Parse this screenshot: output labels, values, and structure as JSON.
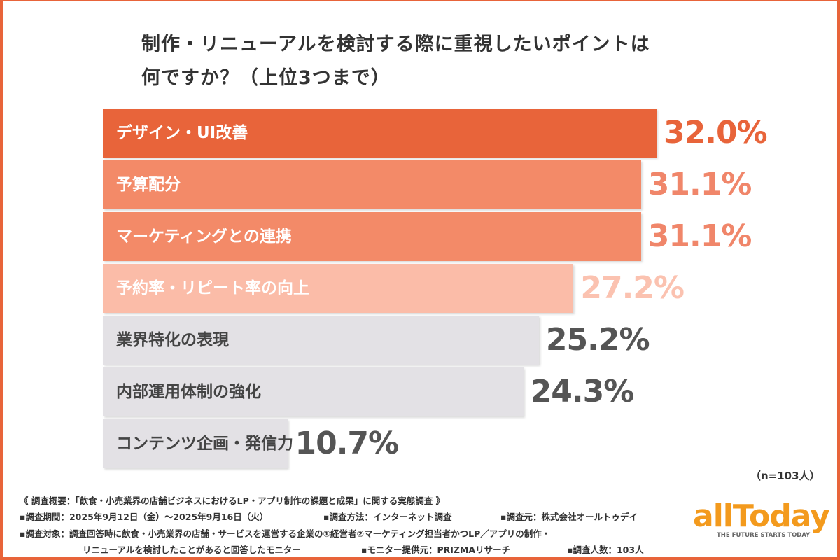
{
  "title_line1": "制作・リニューアルを検討する際に重視したいポイントは",
  "title_line2": "何ですか？（上位3つまで）",
  "chart_data": {
    "type": "bar",
    "orientation": "horizontal",
    "title": "制作・リニューアルを検討する際に重視したいポイントは何ですか？（上位3つまで）",
    "categories": [
      "デザイン・UI改善",
      "予算配分",
      "マーケティングとの連携",
      "予約率・リピート率の向上",
      "業界特化の表現",
      "内部運用体制の強化",
      "コンテンツ企画・発信力"
    ],
    "values": [
      32.0,
      31.1,
      31.1,
      27.2,
      25.2,
      24.3,
      10.7
    ],
    "value_labels": [
      "32.0%",
      "31.1%",
      "31.1%",
      "27.2%",
      "25.2%",
      "24.3%",
      "10.7%"
    ],
    "unit": "%",
    "bar_colors": [
      "#e8643a",
      "#f38a68",
      "#f38a68",
      "#fbbca8",
      "#e3e1e5",
      "#e3e1e5",
      "#e3e1e5"
    ],
    "label_colors": [
      "#ffffff",
      "#ffffff",
      "#ffffff",
      "#ffffff",
      "#444444",
      "#444444",
      "#444444"
    ],
    "value_colors": [
      "#e8643a",
      "#f0866a",
      "#f0866a",
      "#fbc2b0",
      "#555555",
      "#555555",
      "#555555"
    ],
    "grid": false
  },
  "sample_note": "（n=103人）",
  "footer": {
    "line1": "《 調査概要：「飲食・小売業界の店舗ビジネスにおけるLP・アプリ制作の課題と成果」に関する実態調査 》",
    "period": "▪調査期間：2025年9月12日（金）～2025年9月16日（火）",
    "method": "▪調査方法：インターネット調査",
    "source": "▪調査元：株式会社オールトゥデイ",
    "target1": "▪調査対象：調査回答時に飲食・小売業界の店舗・サービスを運営する企業の①経営者②マーケティング担当者かつLP／アプリの制作・",
    "target2": "リニューアルを検討したことがあると回答したモニター",
    "provider": "▪モニター提供元：PRIZMAリサーチ",
    "count": "▪調査人数：103人"
  },
  "logo": {
    "name": "allToday",
    "tagline": "THE FUTURE STARTS TODAY"
  },
  "colors": {
    "accent": "#e8643a",
    "logo": "#f39a1d"
  }
}
